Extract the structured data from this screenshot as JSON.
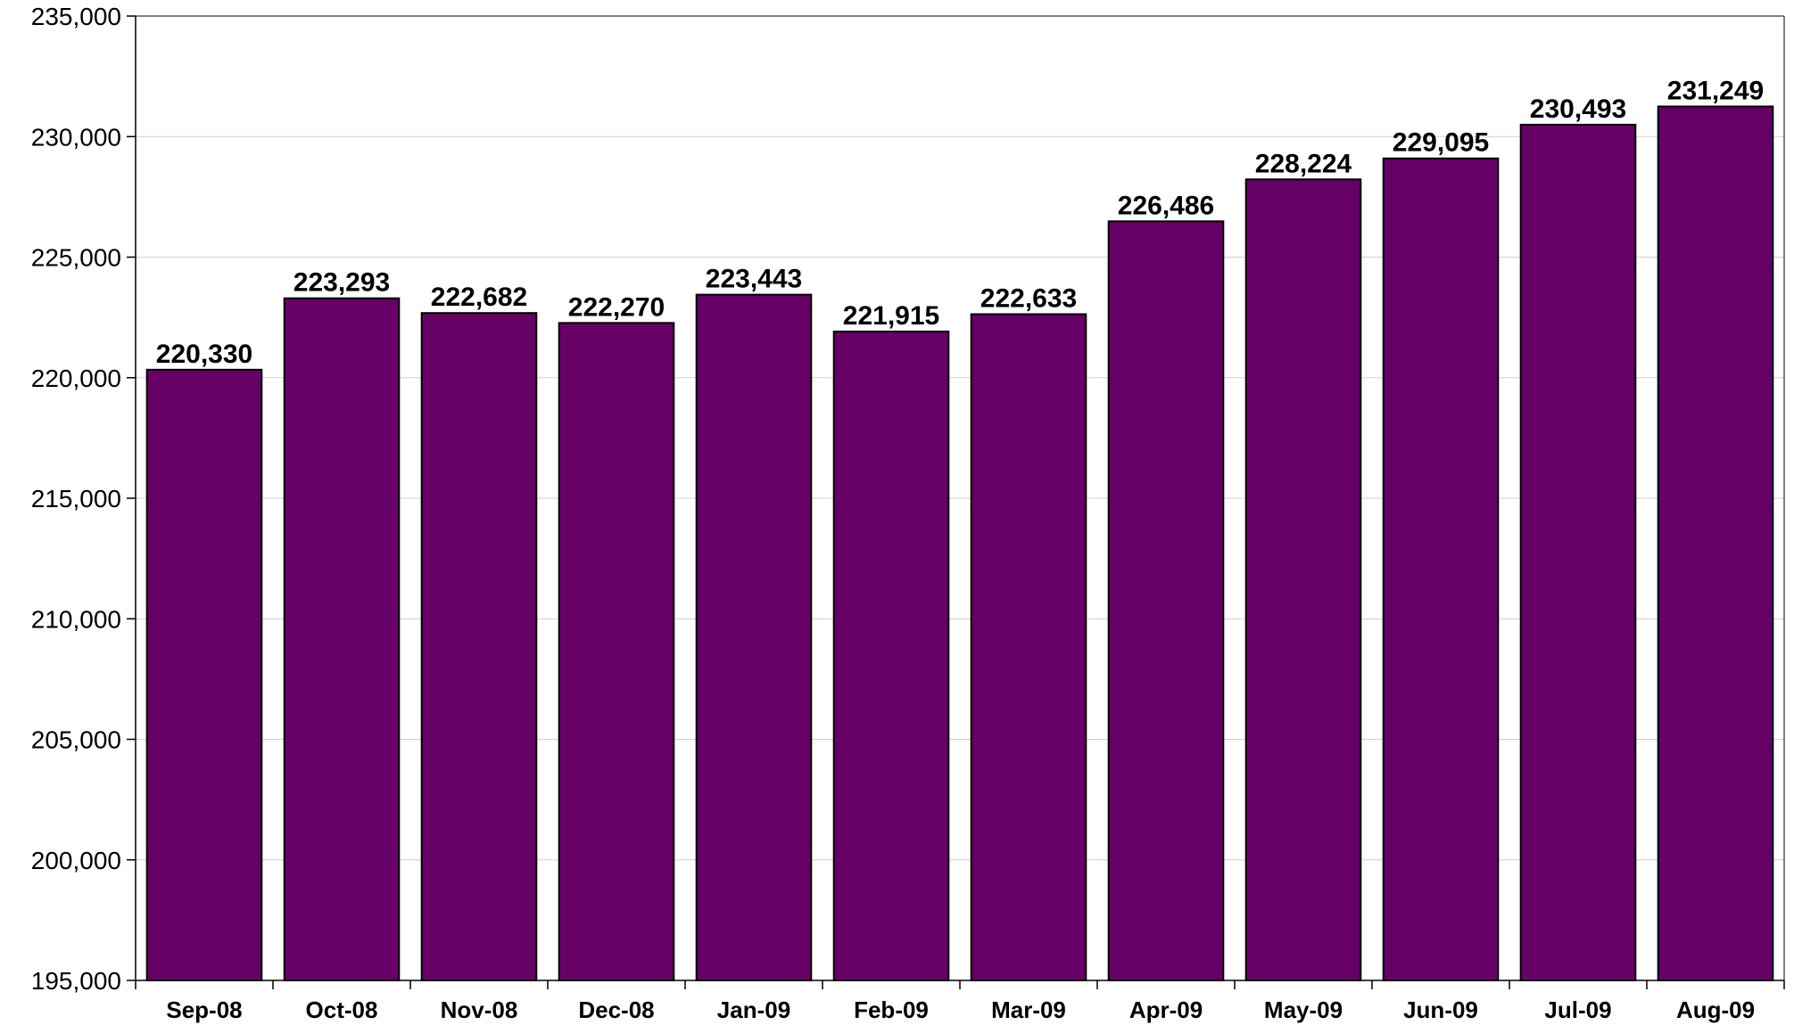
{
  "chart_data": {
    "type": "bar",
    "title": "",
    "xlabel": "",
    "ylabel": "",
    "categories": [
      "Sep-08",
      "Oct-08",
      "Nov-08",
      "Dec-08",
      "Jan-09",
      "Feb-09",
      "Mar-09",
      "Apr-09",
      "May-09",
      "Jun-09",
      "Jul-09",
      "Aug-09"
    ],
    "values": [
      220330,
      223293,
      222682,
      222270,
      223443,
      221915,
      222633,
      226486,
      228224,
      229095,
      230493,
      231249
    ],
    "data_labels": [
      "220,330",
      "223,293",
      "222,682",
      "222,270",
      "223,443",
      "221,915",
      "222,633",
      "226,486",
      "228,224",
      "229,095",
      "230,493",
      "231,249"
    ],
    "ylim": [
      195000,
      235000
    ],
    "yticks": [
      195000,
      200000,
      205000,
      210000,
      215000,
      220000,
      225000,
      230000,
      235000
    ],
    "ytick_labels": [
      "195,000",
      "200,000",
      "205,000",
      "210,000",
      "215,000",
      "220,000",
      "225,000",
      "230,000",
      "235,000"
    ],
    "grid": true,
    "legend": "none",
    "colors": {
      "bar_fill": "#660066",
      "bar_stroke": "#000000",
      "grid": "#d0d0d0",
      "axis": "#000000"
    }
  }
}
